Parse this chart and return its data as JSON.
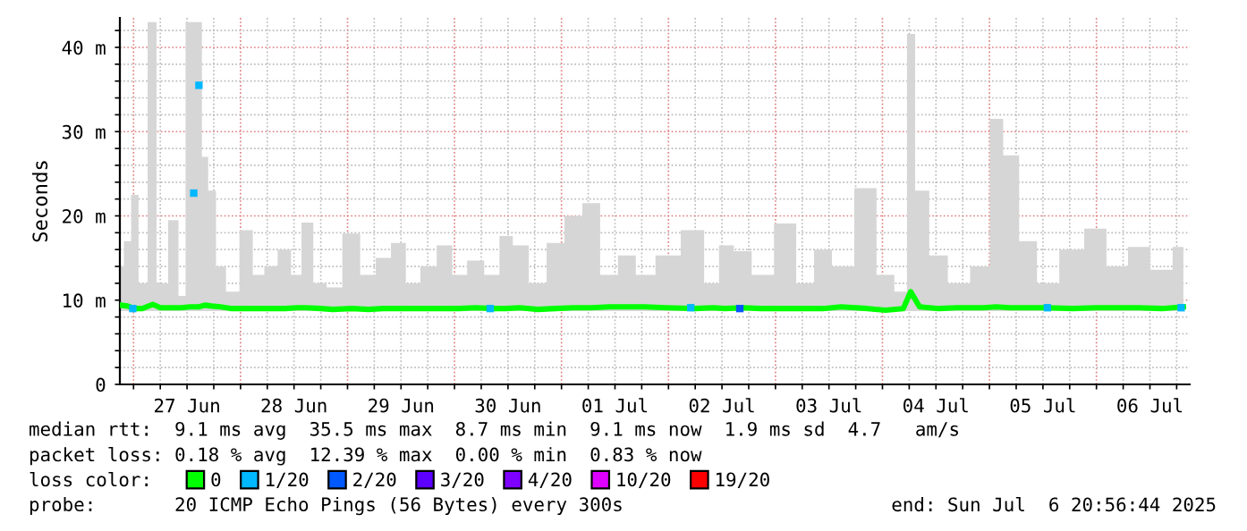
{
  "chart_data": {
    "type": "line",
    "ylabel": "Seconds",
    "legend_title": "loss color:",
    "legend": "bottom",
    "grid": true,
    "xlim": [
      "2025-06-26T20:56",
      "2025-07-06T20:56"
    ],
    "xticks": [
      {
        "value": "2025-06-27T00:00",
        "label": null
      },
      {
        "value": "2025-06-27T06:00",
        "label": null
      },
      {
        "value": "2025-06-27T12:00",
        "label": "27 Jun"
      },
      {
        "value": "2025-06-27T18:00",
        "label": null
      },
      {
        "value": "2025-06-28T00:00",
        "label": null
      },
      {
        "value": "2025-06-28T06:00",
        "label": null
      },
      {
        "value": "2025-06-28T12:00",
        "label": "28 Jun"
      },
      {
        "value": "2025-06-28T18:00",
        "label": null
      },
      {
        "value": "2025-06-29T00:00",
        "label": null
      },
      {
        "value": "2025-06-29T06:00",
        "label": null
      },
      {
        "value": "2025-06-29T12:00",
        "label": "29 Jun"
      },
      {
        "value": "2025-06-29T18:00",
        "label": null
      },
      {
        "value": "2025-06-30T00:00",
        "label": null
      },
      {
        "value": "2025-06-30T06:00",
        "label": null
      },
      {
        "value": "2025-06-30T12:00",
        "label": "30 Jun"
      },
      {
        "value": "2025-06-30T18:00",
        "label": null
      },
      {
        "value": "2025-07-01T00:00",
        "label": null
      },
      {
        "value": "2025-07-01T06:00",
        "label": null
      },
      {
        "value": "2025-07-01T12:00",
        "label": "01 Jul"
      },
      {
        "value": "2025-07-01T18:00",
        "label": null
      },
      {
        "value": "2025-07-02T00:00",
        "label": null
      },
      {
        "value": "2025-07-02T06:00",
        "label": null
      },
      {
        "value": "2025-07-02T12:00",
        "label": "02 Jul"
      },
      {
        "value": "2025-07-02T18:00",
        "label": null
      },
      {
        "value": "2025-07-03T00:00",
        "label": null
      },
      {
        "value": "2025-07-03T06:00",
        "label": null
      },
      {
        "value": "2025-07-03T12:00",
        "label": "03 Jul"
      },
      {
        "value": "2025-07-03T18:00",
        "label": null
      },
      {
        "value": "2025-07-04T00:00",
        "label": null
      },
      {
        "value": "2025-07-04T06:00",
        "label": null
      },
      {
        "value": "2025-07-04T12:00",
        "label": "04 Jul"
      },
      {
        "value": "2025-07-04T18:00",
        "label": null
      },
      {
        "value": "2025-07-05T00:00",
        "label": null
      },
      {
        "value": "2025-07-05T06:00",
        "label": null
      },
      {
        "value": "2025-07-05T12:00",
        "label": "05 Jul"
      },
      {
        "value": "2025-07-05T18:00",
        "label": null
      },
      {
        "value": "2025-07-06T00:00",
        "label": null
      },
      {
        "value": "2025-07-06T06:00",
        "label": null
      },
      {
        "value": "2025-07-06T12:00",
        "label": "06 Jul"
      },
      {
        "value": "2025-07-06T18:00",
        "label": null
      }
    ],
    "ylim": [
      0,
      43.5
    ],
    "yticks": [
      {
        "value": 0,
        "label": "0"
      },
      {
        "value": 2,
        "label": null
      },
      {
        "value": 4,
        "label": null
      },
      {
        "value": 6,
        "label": null
      },
      {
        "value": 8,
        "label": null
      },
      {
        "value": 10,
        "label": "10 m"
      },
      {
        "value": 12,
        "label": null
      },
      {
        "value": 14,
        "label": null
      },
      {
        "value": 16,
        "label": null
      },
      {
        "value": 18,
        "label": null
      },
      {
        "value": 20,
        "label": "20 m"
      },
      {
        "value": 22,
        "label": null
      },
      {
        "value": 24,
        "label": null
      },
      {
        "value": 26,
        "label": null
      },
      {
        "value": 28,
        "label": null
      },
      {
        "value": 30,
        "label": "30 m"
      },
      {
        "value": 32,
        "label": null
      },
      {
        "value": 34,
        "label": null
      },
      {
        "value": 36,
        "label": null
      },
      {
        "value": 38,
        "label": null
      },
      {
        "value": 40,
        "label": "40 m"
      },
      {
        "value": 42,
        "label": null
      }
    ],
    "series": [
      {
        "name": "0",
        "color": "#00ff00",
        "x": [
          "2025-06-26T21:00",
          "2025-06-26T22:40",
          "2025-06-27T00:15",
          "2025-06-27T02:00",
          "2025-06-27T04:20",
          "2025-06-27T06:00",
          "2025-06-27T09:30",
          "2025-06-27T10:40",
          "2025-06-27T12:40",
          "2025-06-27T14:40",
          "2025-06-27T16:00",
          "2025-06-27T17:30",
          "2025-06-27T19:30",
          "2025-06-27T22:00",
          "2025-06-28T01:30",
          "2025-06-28T04:00",
          "2025-06-28T06:40",
          "2025-06-28T10:00",
          "2025-06-28T12:40",
          "2025-06-28T14:40",
          "2025-06-28T18:00",
          "2025-06-28T20:40",
          "2025-06-29T01:00",
          "2025-06-29T04:40",
          "2025-06-29T08:00",
          "2025-06-29T11:30",
          "2025-06-29T14:40",
          "2025-06-29T18:00",
          "2025-06-29T22:00",
          "2025-06-30T01:00",
          "2025-06-30T04:40",
          "2025-06-30T08:40",
          "2025-06-30T11:30",
          "2025-06-30T14:40",
          "2025-06-30T18:40",
          "2025-06-30T22:40",
          "2025-07-01T02:40",
          "2025-07-01T06:40",
          "2025-07-01T10:40",
          "2025-07-01T14:40",
          "2025-07-01T18:40",
          "2025-07-01T23:30",
          "2025-07-02T06:00",
          "2025-07-02T10:00",
          "2025-07-02T12:40",
          "2025-07-02T16:40",
          "2025-07-02T20:40",
          "2025-07-03T02:40",
          "2025-07-03T06:40",
          "2025-07-03T10:40",
          "2025-07-03T14:40",
          "2025-07-03T20:40",
          "2025-07-04T00:40",
          "2025-07-04T04:40",
          "2025-07-04T06:20",
          "2025-07-04T08:20",
          "2025-07-04T12:40",
          "2025-07-04T16:40",
          "2025-07-04T22:40",
          "2025-07-05T01:30",
          "2025-07-05T04:40",
          "2025-07-05T08:40",
          "2025-07-05T12:40",
          "2025-07-05T18:40",
          "2025-07-05T23:50",
          "2025-07-06T04:40",
          "2025-07-06T09:30",
          "2025-07-06T14:40",
          "2025-07-06T19:30"
        ],
        "values": [
          9.4,
          9.3,
          9,
          9,
          9.5,
          9.1,
          9.1,
          9.1,
          9.2,
          9.2,
          9.4,
          9.3,
          9.2,
          9,
          9,
          9,
          9,
          9,
          9.1,
          9.1,
          9,
          8.9,
          9,
          8.9,
          9,
          9,
          9,
          9,
          9,
          9,
          9.1,
          9,
          9,
          9.1,
          8.9,
          9,
          9.1,
          9.1,
          9.2,
          9.2,
          9.2,
          9.1,
          9,
          9.1,
          9,
          9.1,
          9,
          9,
          9,
          9,
          9.2,
          9,
          8.8,
          9,
          11,
          9.2,
          9,
          9.1,
          9.1,
          9.2,
          9.1,
          9.1,
          9.1,
          9,
          9.1,
          9.1,
          9.1,
          9,
          9.2
        ],
        "lower": [
          8.7,
          8.7,
          8.7,
          8.7,
          8.7,
          8.7,
          8.7,
          8.7,
          8.7,
          8.7,
          8.7,
          8.7,
          8.7,
          8.7,
          8.7,
          8.7,
          8.7,
          8.7,
          8.7,
          8.7,
          8.7,
          8.7,
          8.7,
          8.7,
          8.7,
          8.7,
          8.7,
          8.7,
          8.7,
          8.7,
          8.7,
          8.7,
          8.7,
          8.7,
          8.7,
          8.7,
          8.7,
          8.7,
          8.7,
          8.7,
          8.7,
          8.7,
          8.7,
          8.7,
          8.7,
          8.7,
          8.7,
          8.7,
          8.7,
          8.7,
          8.7,
          8.7,
          8.7,
          8.7,
          8.7,
          8.7,
          8.7,
          8.7,
          8.7,
          8.7,
          8.7,
          8.7,
          8.7,
          8.7,
          8.7,
          8.7,
          8.7,
          8.7,
          8.7
        ],
        "upper": [
          14,
          17,
          22.5,
          12,
          43,
          12,
          19.5,
          10.5,
          43,
          43,
          27,
          23,
          14,
          11,
          18.3,
          13,
          14,
          16,
          13,
          19.2,
          12,
          11.5,
          17.9,
          13,
          15,
          16.8,
          12,
          14,
          16.5,
          13,
          14.7,
          13,
          17.6,
          16.5,
          12,
          16.8,
          20,
          21.5,
          13,
          15.3,
          13,
          15.3,
          18.3,
          12,
          16.5,
          15.8,
          13,
          19.1,
          12,
          16,
          14,
          23.3,
          13,
          11,
          41.6,
          23,
          15.3,
          12,
          14,
          31.5,
          27.2,
          17,
          12,
          16,
          18.5,
          14,
          16.3,
          13.6,
          16.3
        ]
      },
      {
        "name": "1/20",
        "color": "#00b8ff",
        "type": "scatter",
        "marker": "square",
        "x": [
          "2025-06-26T23:50",
          "2025-06-27T13:30",
          "2025-06-27T14:40",
          "2025-06-30T08:00",
          "2025-07-02T05:00",
          "2025-07-05T13:00",
          "2025-07-06T19:00"
        ],
        "values": [
          9,
          22.7,
          35.5,
          9,
          9.1,
          9.1,
          9.1
        ]
      },
      {
        "name": "2/20",
        "color": "#0059ff",
        "type": "scatter",
        "marker": "square",
        "x": [
          "2025-07-02T16:00"
        ],
        "values": [
          9
        ]
      },
      {
        "name": "3/20",
        "color": "#5e00ff",
        "type": "scatter"
      },
      {
        "name": "4/20",
        "color": "#7e00ff",
        "type": "scatter"
      },
      {
        "name": "10/20",
        "color": "#dd00ff",
        "type": "scatter"
      },
      {
        "name": "19/20",
        "color": "#ff0000",
        "type": "scatter"
      }
    ],
    "annotations": [
      "median rtt:  9.1 ms avg  35.5 ms max  8.7 ms min  9.1 ms now  1.9 ms sd  4.7   am/s",
      "packet loss: 0.18 % avg  12.39 % max  0.00 % min  0.83 % now",
      "probe:       20 ICMP Echo Pings (56 Bytes) every 300s",
      "end: Sun Jul  6 20:56:44 2025"
    ]
  }
}
